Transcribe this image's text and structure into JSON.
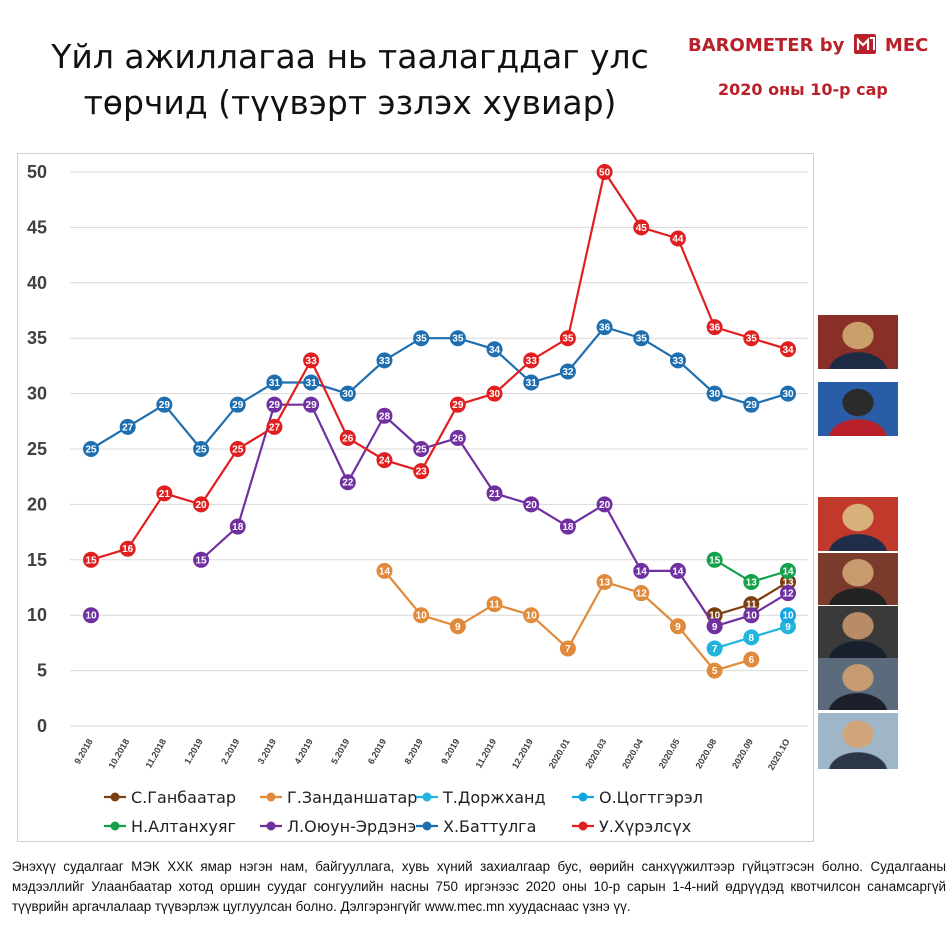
{
  "header": {
    "title_line1": "Үйл ажиллагаа нь таалагддаг улс",
    "title_line2": "төрчид (түүвэрт эзлэх хувиар)",
    "brand": "BAROMETER by",
    "brand_mark": "MEC",
    "date": "2020 оны 10-р сар",
    "brand_color": "#b8202a"
  },
  "footnote": "Энэхүү судалгааг МЭК ХХК ямар нэгэн нам, байгууллага, хувь хүний захиалгаар бус, өөрийн санхүүжилтээр гүйцэтгэсэн болно. Судалгааны мэдээллийг Улаанбаатар хотод оршин суудаг сонгуулийн насны 750 иргэнээс 2020 оны 10-р сарын 1-4-ний өдрүүдэд квотчилсон санамсаргүй түүврийн аргачлалаар түүвэрлэж цуглуулсан болно. Дэлгэрэнгүйг www.mec.mn хуудаснаас үзнэ үү.",
  "photos": [
    {
      "name": "photo-u-khurelsukh",
      "colors": [
        "#8a2e28",
        "#1d2b44",
        "#c9a06a"
      ]
    },
    {
      "name": "photo-kh-battulga",
      "colors": [
        "#2a5da8",
        "#b8202a",
        "#2b2b2b"
      ]
    },
    {
      "name": "photo-l-oyun-erdene",
      "colors": [
        "#c0392b",
        "#1f2d4a",
        "#d8b07a"
      ]
    },
    {
      "name": "photo-n-altankhuyag",
      "colors": [
        "#7a3a2c",
        "#222222",
        "#c99a6e"
      ]
    },
    {
      "name": "photo-s-ganbaatar",
      "colors": [
        "#3a3a3a",
        "#18202e",
        "#b78c66"
      ]
    },
    {
      "name": "photo-g-zandanshatar",
      "colors": [
        "#5b6b7b",
        "#1a1f2a",
        "#c79b72"
      ]
    },
    {
      "name": "photo-t-dorjkhand",
      "colors": [
        "#9fb6c9",
        "#2c3646",
        "#d2a47a"
      ]
    }
  ],
  "chart_data": {
    "type": "line",
    "title": "Үйл ажиллагаа нь таалагддаг улс төрчид (түүвэрт эзлэх хувиар)",
    "xlabel": "",
    "ylabel": "",
    "ylim": [
      0,
      50
    ],
    "yticks": [
      0,
      5,
      10,
      15,
      20,
      25,
      30,
      35,
      40,
      45,
      50
    ],
    "grid": "horizontal",
    "legend_position": "bottom",
    "categories": [
      "9.2018",
      "10.2018",
      "11.2018",
      "1.2019",
      "2.2019",
      "3.2019",
      "4.2019",
      "5.2019",
      "6.2019",
      "8.2019",
      "9.2019",
      "11.2019",
      "12.2019",
      "2020.01",
      "2020.03",
      "2020.04",
      "2020.05",
      "2020.08",
      "2020.09",
      "2020.1O"
    ],
    "series": [
      {
        "name": "С.Ганбаатар",
        "color": "#7b3f12",
        "values": [
          null,
          null,
          null,
          null,
          null,
          null,
          null,
          null,
          null,
          null,
          null,
          null,
          null,
          null,
          null,
          null,
          null,
          10,
          11,
          13
        ]
      },
      {
        "name": "Г.Занданшатар",
        "color": "#e08a3c",
        "values": [
          null,
          null,
          null,
          null,
          null,
          null,
          null,
          null,
          14,
          10,
          9,
          11,
          10,
          7,
          13,
          12,
          9,
          5,
          6,
          null
        ]
      },
      {
        "name": "Т.Доржханд",
        "color": "#21b5dd",
        "values": [
          null,
          null,
          null,
          null,
          null,
          null,
          null,
          null,
          null,
          null,
          null,
          null,
          null,
          null,
          null,
          null,
          null,
          7,
          8,
          9
        ]
      },
      {
        "name": "О.Цогтгэрэл",
        "color": "#12a6e0",
        "values": [
          null,
          null,
          null,
          null,
          null,
          null,
          null,
          null,
          null,
          null,
          null,
          null,
          null,
          null,
          null,
          null,
          null,
          null,
          null,
          10
        ]
      },
      {
        "name": "Н.Алтанхуяг",
        "color": "#14a04a",
        "values": [
          null,
          null,
          null,
          null,
          null,
          null,
          null,
          null,
          null,
          null,
          null,
          null,
          null,
          null,
          null,
          null,
          null,
          15,
          13,
          14
        ]
      },
      {
        "name": "Л.Оюун-Эрдэнэ",
        "color": "#7030a0",
        "values": [
          10,
          null,
          null,
          15,
          18,
          29,
          29,
          22,
          28,
          25,
          26,
          21,
          20,
          18,
          20,
          14,
          14,
          9,
          10,
          12
        ]
      },
      {
        "name": "Х.Баттулга",
        "color": "#1f6fb0",
        "values": [
          25,
          27,
          29,
          25,
          29,
          31,
          31,
          30,
          33,
          35,
          35,
          34,
          31,
          32,
          36,
          35,
          33,
          30,
          29,
          30
        ]
      },
      {
        "name": "У.Хүрэлсүх",
        "color": "#e02020",
        "values": [
          15,
          16,
          21,
          20,
          25,
          27,
          33,
          26,
          24,
          23,
          29,
          30,
          33,
          35,
          50,
          45,
          44,
          36,
          35,
          34
        ]
      }
    ]
  }
}
